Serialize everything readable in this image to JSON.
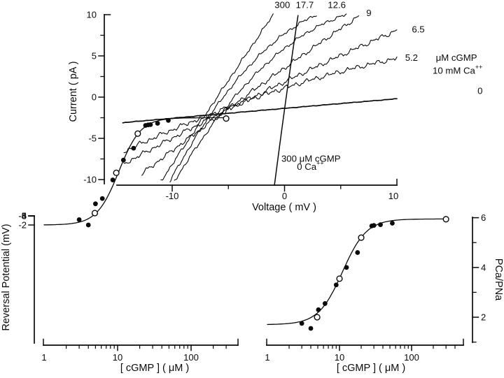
{
  "figure_bg": "#ffffff",
  "ink_color": "#0a0a0a",
  "chart_data": [
    {
      "id": "iv_panel",
      "type": "line",
      "title": "",
      "xlabel": "Voltage   ( mV )",
      "ylabel": "Current   ( pA )",
      "xlim": [
        -15,
        10.3
      ],
      "ylim": [
        -10.7,
        10
      ],
      "x_major_ticks": [
        -10,
        0,
        10
      ],
      "x_minor_ticks": [
        -5,
        5
      ],
      "y_major_ticks": [
        10,
        5,
        0,
        -5,
        -10
      ],
      "y_minor_ticks": [
        7.5,
        2.5,
        -2.5,
        -7.5
      ],
      "grid": false,
      "series": [
        {
          "name": "300 uM cGMP / 10 mM Ca",
          "label": "300",
          "anchors": [
            [
              -11.0,
              -10.2
            ],
            [
              -6.0,
              0
            ],
            [
              -1.0,
              10
            ]
          ],
          "noise": 0.2,
          "width": 1.1
        },
        {
          "name": "17.7 uM cGMP / 10 mM Ca",
          "label": "17.7",
          "anchors": [
            [
              -10.2,
              -10.2
            ],
            [
              -5.45,
              0
            ],
            [
              2.85,
              10
            ]
          ],
          "noise": 0.2,
          "width": 1.1
        },
        {
          "name": "12.6 uM cGMP / 10 mM Ca",
          "label": "12.6",
          "anchors": [
            [
              -9.8,
              -10.2
            ],
            [
              -4.45,
              0
            ],
            [
              5.5,
              10
            ]
          ],
          "noise": 0.2,
          "width": 1.1
        },
        {
          "name": "9 uM cGMP / 10 mM Ca",
          "label": "9",
          "anchors": [
            [
              -12.7,
              -9.3
            ],
            [
              -3.6,
              0
            ],
            [
              6.6,
              9.8
            ]
          ],
          "noise": 0.28,
          "width": 1.1
        },
        {
          "name": "6.5 uM cGMP / 10 mM Ca",
          "label": "6.5",
          "anchors": [
            [
              -14.3,
              -8.1
            ],
            [
              -2.8,
              0
            ],
            [
              10.0,
              8.1
            ]
          ],
          "noise": 0.3,
          "width": 1.1
        },
        {
          "name": "5.2 uM cGMP / 10 mM Ca",
          "label": "5.2",
          "anchors": [
            [
              -14.3,
              -6.6
            ],
            [
              -2.45,
              0
            ],
            [
              10.0,
              4.7
            ]
          ],
          "noise": 0.3,
          "width": 1.1
        },
        {
          "name": "0 cGMP / 10 mM Ca",
          "label": "0",
          "anchors": [
            [
              -14.4,
              -3.1
            ],
            [
              -2.0,
              -1.6
            ],
            [
              10.0,
              -0.2
            ]
          ],
          "noise": 0.03,
          "width": 1.7
        },
        {
          "name": "300 uM cGMP / 0 Ca",
          "label": "300 (0 Ca)",
          "anchors": [
            [
              -0.9,
              -10.7
            ],
            [
              0.15,
              0
            ],
            [
              1.2,
              9.9
            ]
          ],
          "noise": 0,
          "width": 1.5
        }
      ],
      "annotations": [
        {
          "text": "300",
          "v": -0.2,
          "i": 11.2,
          "anchor": "middle"
        },
        {
          "text": "17.7",
          "v": 1.8,
          "i": 11.2,
          "anchor": "middle"
        },
        {
          "text": "12.6",
          "v": 4.65,
          "i": 11.2,
          "anchor": "middle"
        },
        {
          "text": "9",
          "v": 7.5,
          "i": 10.2,
          "anchor": "middle"
        },
        {
          "text": "6.5",
          "v": 11.9,
          "i": 8.2,
          "anchor": "middle"
        },
        {
          "text": "5.2",
          "v": 11.3,
          "i": 4.8,
          "anchor": "middle"
        },
        {
          "text": "μM cGMP",
          "v": 15.3,
          "i": 4.8,
          "anchor": "middle"
        },
        {
          "text": "10 mM Ca",
          "sup": "++",
          "v": 15.4,
          "i": 3.2,
          "anchor": "middle"
        },
        {
          "text": "0",
          "v": 17.4,
          "i": 0.78,
          "anchor": "middle"
        },
        {
          "text": "300 μM cGMP",
          "v": 2.35,
          "i": -7.45,
          "anchor": "middle"
        },
        {
          "text": "0 Ca",
          "sup": "++",
          "v": 2.3,
          "i": -8.45,
          "anchor": "middle"
        }
      ]
    },
    {
      "id": "reversal_panel",
      "type": "scatter",
      "title": "",
      "xlabel": "[ cGMP ]   ( μM )",
      "ylabel": "Reversal Potential  (mV)",
      "xscale": "log",
      "xlim": [
        1,
        430
      ],
      "ylim": [
        -6.6,
        -1.65
      ],
      "x_major_ticks": [
        1,
        10,
        100
      ],
      "y_major_ticks": [
        -2,
        -3,
        -4,
        -5,
        -6
      ],
      "y_minor_ticks": [
        -2.5,
        -3.5,
        -4.5,
        -5.5,
        -6.5
      ],
      "grid": false,
      "filled_points": [
        [
          3,
          -2.2
        ],
        [
          4,
          -2.0
        ],
        [
          5,
          -2.8
        ],
        [
          6.2,
          -3.0
        ],
        [
          8.6,
          -3.7
        ],
        [
          12,
          -4.45
        ],
        [
          16.5,
          -4.9
        ],
        [
          24,
          -5.76
        ],
        [
          26,
          -5.78
        ],
        [
          28,
          -5.79
        ],
        [
          35,
          -5.84
        ],
        [
          49,
          -5.95
        ]
      ],
      "open_points": [
        [
          4.9,
          -2.45
        ],
        [
          9.6,
          -3.97
        ],
        [
          18.8,
          -5.45
        ],
        [
          300,
          -6.02
        ]
      ],
      "fit": {
        "model": "hill",
        "base": -2.0,
        "span": -4.05,
        "k": 10.4,
        "n": 2.9,
        "from": 1,
        "to": 300
      }
    },
    {
      "id": "permeability_panel",
      "type": "scatter",
      "title": "",
      "xlabel": "[ cGMP ]   ( μM )",
      "ylabel": "PCa/PNa",
      "xscale": "log",
      "xlim": [
        1,
        520
      ],
      "ylim": [
        1.0,
        6.05
      ],
      "x_major_ticks": [
        1,
        10,
        100
      ],
      "y_major_ticks": [
        6,
        4,
        2
      ],
      "y_minor_ticks": [
        5,
        3,
        1
      ],
      "grid": false,
      "filled_points": [
        [
          3,
          1.75
        ],
        [
          4,
          1.55
        ],
        [
          5.1,
          2.3
        ],
        [
          6.3,
          2.55
        ],
        [
          9,
          3.3
        ],
        [
          12.5,
          4.0
        ],
        [
          17.8,
          4.6
        ],
        [
          28,
          5.67
        ],
        [
          30,
          5.69
        ],
        [
          37,
          5.72
        ],
        [
          54,
          5.78
        ]
      ],
      "open_points": [
        [
          4.9,
          2.0
        ],
        [
          10,
          3.55
        ],
        [
          20,
          5.2
        ],
        [
          300,
          5.94
        ]
      ],
      "fit": {
        "model": "hill",
        "base": 1.7,
        "span": 4.25,
        "k": 11.0,
        "n": 2.6,
        "from": 1,
        "to": 300
      }
    }
  ]
}
